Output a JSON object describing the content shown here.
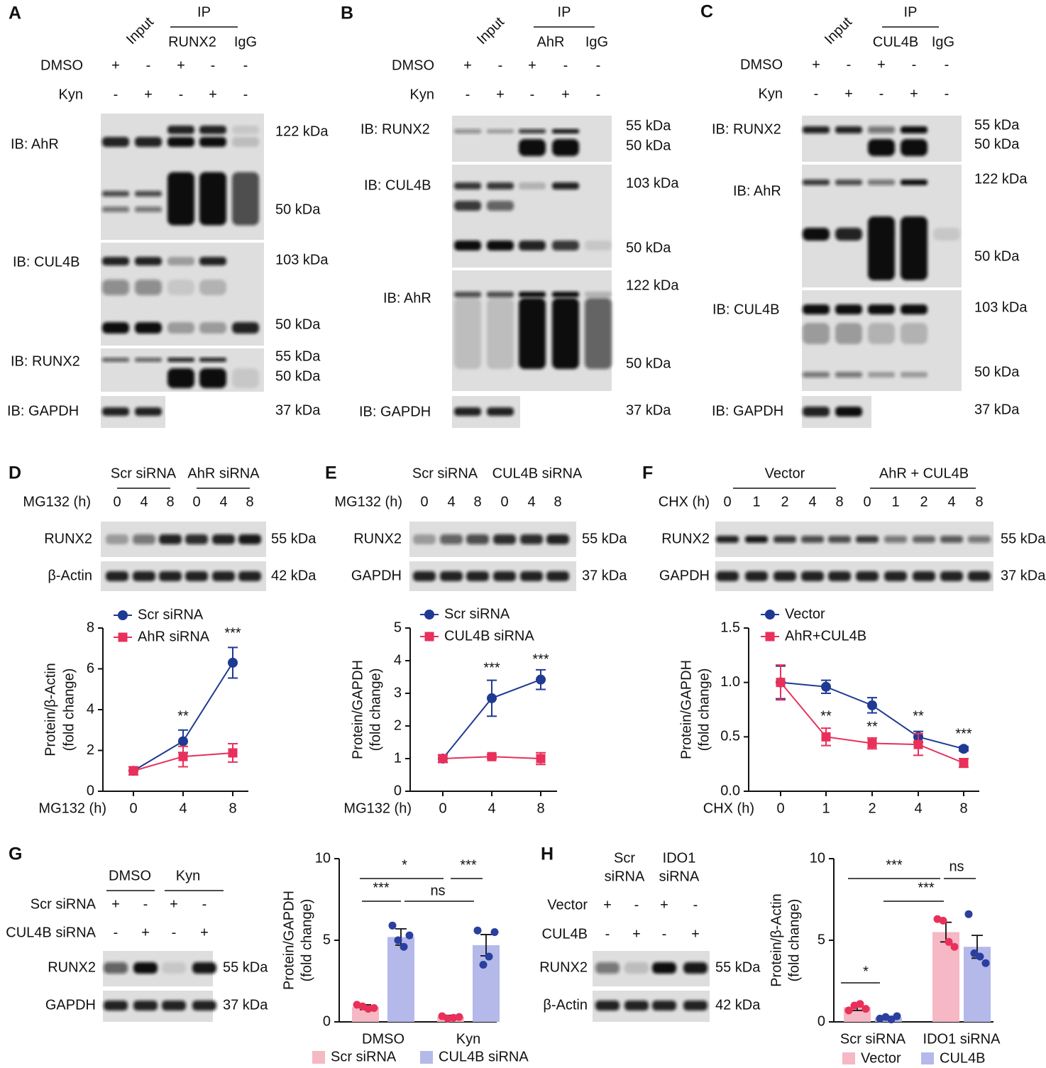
{
  "blots": [
    {
      "letter": "A",
      "input": "Input",
      "ip": "IP",
      "ip_headers": [
        "RUNX2",
        "IgG"
      ],
      "conditions": [
        {
          "name": "DMSO",
          "signs": [
            "+",
            "-",
            "+",
            "-",
            "-"
          ]
        },
        {
          "name": "Kyn",
          "signs": [
            "-",
            "+",
            "-",
            "+",
            "-"
          ]
        }
      ],
      "rows": [
        {
          "label": "IB: AhR",
          "markers": [
            "122 kDa",
            "50 kDa"
          ]
        },
        {
          "label": "IB: CUL4B",
          "markers": [
            "103 kDa",
            "50 kDa"
          ]
        },
        {
          "label": "IB: RUNX2",
          "markers": [
            "55 kDa",
            "50 kDa"
          ]
        },
        {
          "label": "IB: GAPDH",
          "markers": [
            "37 kDa"
          ]
        }
      ]
    },
    {
      "letter": "B",
      "input": "Input",
      "ip": "IP",
      "ip_headers": [
        "AhR",
        "IgG"
      ],
      "conditions": [
        {
          "name": "DMSO",
          "signs": [
            "+",
            "-",
            "+",
            "-",
            "-"
          ]
        },
        {
          "name": "Kyn",
          "signs": [
            "-",
            "+",
            "-",
            "+",
            "-"
          ]
        }
      ],
      "rows": [
        {
          "label": "IB: RUNX2",
          "markers": [
            "55 kDa",
            "50 kDa"
          ]
        },
        {
          "label": "IB: CUL4B",
          "markers": [
            "103 kDa",
            "50 kDa"
          ]
        },
        {
          "label": "IB: AhR",
          "markers": [
            "122 kDa",
            "50 kDa"
          ]
        },
        {
          "label": "IB: GAPDH",
          "markers": [
            "37 kDa"
          ]
        }
      ]
    },
    {
      "letter": "C",
      "input": "Input",
      "ip": "IP",
      "ip_headers": [
        "CUL4B",
        "IgG"
      ],
      "conditions": [
        {
          "name": "DMSO",
          "signs": [
            "+",
            "-",
            "+",
            "-",
            "-"
          ]
        },
        {
          "name": "Kyn",
          "signs": [
            "-",
            "+",
            "-",
            "+",
            "-"
          ]
        }
      ],
      "rows": [
        {
          "label": "IB: RUNX2",
          "markers": [
            "55 kDa",
            "50 kDa"
          ]
        },
        {
          "label": "IB: AhR",
          "markers": [
            "122 kDa",
            "50 kDa"
          ]
        },
        {
          "label": "IB: CUL4B",
          "markers": [
            "103 kDa",
            "50 kDa"
          ]
        },
        {
          "label": "IB: GAPDH",
          "markers": [
            "37 kDa"
          ]
        }
      ]
    },
    {
      "letter": "D",
      "groups": [
        "Scr siRNA",
        "AhR siRNA"
      ],
      "conditions": [
        {
          "name": "MG132 (h)",
          "signs": [
            "0",
            "4",
            "8",
            "0",
            "4",
            "8"
          ]
        }
      ],
      "rows": [
        {
          "label": "RUNX2",
          "markers": [
            "55 kDa"
          ]
        },
        {
          "label": "β-Actin",
          "markers": [
            "42 kDa"
          ]
        }
      ]
    },
    {
      "letter": "E",
      "groups": [
        "Scr siRNA",
        "CUL4B siRNA"
      ],
      "conditions": [
        {
          "name": "MG132 (h)",
          "signs": [
            "0",
            "4",
            "8",
            "0",
            "4",
            "8"
          ]
        }
      ],
      "rows": [
        {
          "label": "RUNX2",
          "markers": [
            "55 kDa"
          ]
        },
        {
          "label": "GAPDH",
          "markers": [
            "37 kDa"
          ]
        }
      ]
    },
    {
      "letter": "F",
      "groups": [
        "Vector",
        "AhR + CUL4B"
      ],
      "conditions": [
        {
          "name": "CHX (h)",
          "signs": [
            "0",
            "1",
            "2",
            "4",
            "8",
            "0",
            "1",
            "2",
            "4",
            "8"
          ]
        }
      ],
      "rows": [
        {
          "label": "RUNX2",
          "markers": [
            "55 kDa"
          ]
        },
        {
          "label": "GAPDH",
          "markers": [
            "37 kDa"
          ]
        }
      ]
    },
    {
      "letter": "G",
      "groups": [
        "DMSO",
        "Kyn"
      ],
      "conditions": [
        {
          "name": "Scr siRNA",
          "signs": [
            "+",
            "-",
            "+",
            "-"
          ]
        },
        {
          "name": "CUL4B siRNA",
          "signs": [
            "-",
            "+",
            "-",
            "+"
          ]
        }
      ],
      "rows": [
        {
          "label": "RUNX2",
          "markers": [
            "55 kDa"
          ]
        },
        {
          "label": "GAPDH",
          "markers": [
            "37 kDa"
          ]
        }
      ]
    },
    {
      "letter": "H",
      "groups": [
        [
          "Scr",
          "siRNA"
        ],
        [
          "IDO1",
          "siRNA"
        ]
      ],
      "conditions": [
        {
          "name": "Vector",
          "signs": [
            "+",
            "-",
            "+",
            "-"
          ]
        },
        {
          "name": "CUL4B",
          "signs": [
            "-",
            "+",
            "-",
            "+"
          ]
        }
      ],
      "rows": [
        {
          "label": "RUNX2",
          "markers": [
            "55 kDa"
          ]
        },
        {
          "label": "β-Actin",
          "markers": [
            "42 kDa"
          ]
        }
      ]
    }
  ],
  "chart_data": [
    {
      "type": "line",
      "ylabel": [
        "Protein/β-Actin",
        "(fold change)"
      ],
      "xlabel": "MG132 (h)",
      "categories": [
        "0",
        "4",
        "8"
      ],
      "ylim": [
        0,
        8
      ],
      "yticks": [
        0,
        2,
        4,
        6,
        8
      ],
      "series": [
        {
          "name": "Scr siRNA",
          "color": "#1f3a93",
          "marker": "circle",
          "values": [
            1,
            2.45,
            6.3
          ],
          "errors": [
            0.2,
            0.55,
            0.75
          ]
        },
        {
          "name": "AhR siRNA",
          "color": "#e8305a",
          "marker": "square",
          "values": [
            1,
            1.7,
            1.88
          ],
          "errors": [
            0.2,
            0.5,
            0.45
          ]
        }
      ],
      "annotations": [
        "**",
        "***"
      ]
    },
    {
      "type": "line",
      "ylabel": [
        "Protein/GAPDH",
        "(fold change)"
      ],
      "xlabel": "MG132 (h)",
      "categories": [
        "0",
        "4",
        "8"
      ],
      "ylim": [
        0,
        5
      ],
      "yticks": [
        0,
        1,
        2,
        3,
        4,
        5
      ],
      "series": [
        {
          "name": "Scr siRNA",
          "color": "#1f3a93",
          "marker": "circle",
          "values": [
            1,
            2.85,
            3.42
          ],
          "errors": [
            0.12,
            0.55,
            0.3
          ]
        },
        {
          "name": "CUL4B siRNA",
          "color": "#e8305a",
          "marker": "square",
          "values": [
            1,
            1.06,
            1
          ],
          "errors": [
            0.1,
            0.06,
            0.18
          ]
        }
      ],
      "annotations": [
        "***",
        "***"
      ]
    },
    {
      "type": "line",
      "ylabel": [
        "Protein/GAPDH",
        "(fold change)"
      ],
      "xlabel": "CHX (h)",
      "categories": [
        "0",
        "1",
        "2",
        "4",
        "8"
      ],
      "ylim": [
        0,
        1.5
      ],
      "yticks": [
        {
          "value": 0,
          "label": "0.0"
        },
        0.5,
        {
          "value": 1,
          "label": "1.0"
        },
        1.5
      ],
      "series": [
        {
          "name": "Vector",
          "color": "#1f3a93",
          "marker": "circle",
          "values": [
            1,
            0.96,
            0.79,
            0.5,
            0.39
          ],
          "errors": [
            0.15,
            0.06,
            0.07,
            0.05,
            0.02
          ]
        },
        {
          "name": "AhR+CUL4B",
          "color": "#e8305a",
          "marker": "square",
          "values": [
            1,
            0.5,
            0.44,
            0.43,
            0.26
          ],
          "errors": [
            0.16,
            0.08,
            0.05,
            0.1,
            0.04
          ]
        }
      ],
      "annotations": [
        "**",
        "**",
        "**",
        "***"
      ]
    },
    {
      "type": "bar",
      "ylabel": [
        "Protein/GAPDH",
        "(fold change)"
      ],
      "categories": [
        "DMSO",
        "Kyn"
      ],
      "ylim": [
        0,
        10
      ],
      "yticks": [
        0,
        5,
        10
      ],
      "series": [
        {
          "name": "Scr siRNA",
          "color": "#f5b8c4",
          "dot_color": "#e8305a",
          "values": [
            0.9,
            0.3
          ],
          "errors": [
            0.15,
            0.1
          ],
          "points": [
            [
              1.05,
              0.95,
              0.8,
              0.85
            ],
            [
              0.35,
              0.2,
              0.25,
              0.3
            ]
          ]
        },
        {
          "name": "CUL4B siRNA",
          "color": "#b4b9ea",
          "dot_color": "#2a3f9e",
          "values": [
            5.2,
            4.7
          ],
          "errors": [
            0.5,
            0.65
          ],
          "points": [
            [
              5.9,
              5,
              4.6,
              5.3
            ],
            [
              5.6,
              3.5,
              4,
              5.5
            ]
          ]
        }
      ],
      "annotations": [
        "*",
        "***",
        "***",
        "ns"
      ]
    },
    {
      "type": "bar",
      "ylabel": [
        "Protein/β-Actin",
        "(fold change)"
      ],
      "categories": [
        "Scr siRNA",
        "IDO1 siRNA"
      ],
      "ylim": [
        0,
        10
      ],
      "yticks": [
        0,
        5,
        10
      ],
      "series": [
        {
          "name": "Vector",
          "color": "#f5b8c4",
          "dot_color": "#e8305a",
          "values": [
            0.9,
            5.5
          ],
          "errors": [
            0.2,
            0.6
          ],
          "points": [
            [
              0.7,
              1,
              1.1,
              0.8
            ],
            [
              6.3,
              6.2,
              4.9,
              4.6
            ]
          ]
        },
        {
          "name": "CUL4B",
          "color": "#b4b9ea",
          "dot_color": "#2a3f9e",
          "values": [
            0.25,
            4.6
          ],
          "errors": [
            0.08,
            0.7
          ],
          "points": [
            [
              0.2,
              0.3,
              0.15,
              0.35
            ],
            [
              6.6,
              4.2,
              4,
              3.6
            ]
          ]
        }
      ],
      "annotations": [
        "***",
        "ns",
        "***",
        "*"
      ]
    }
  ]
}
